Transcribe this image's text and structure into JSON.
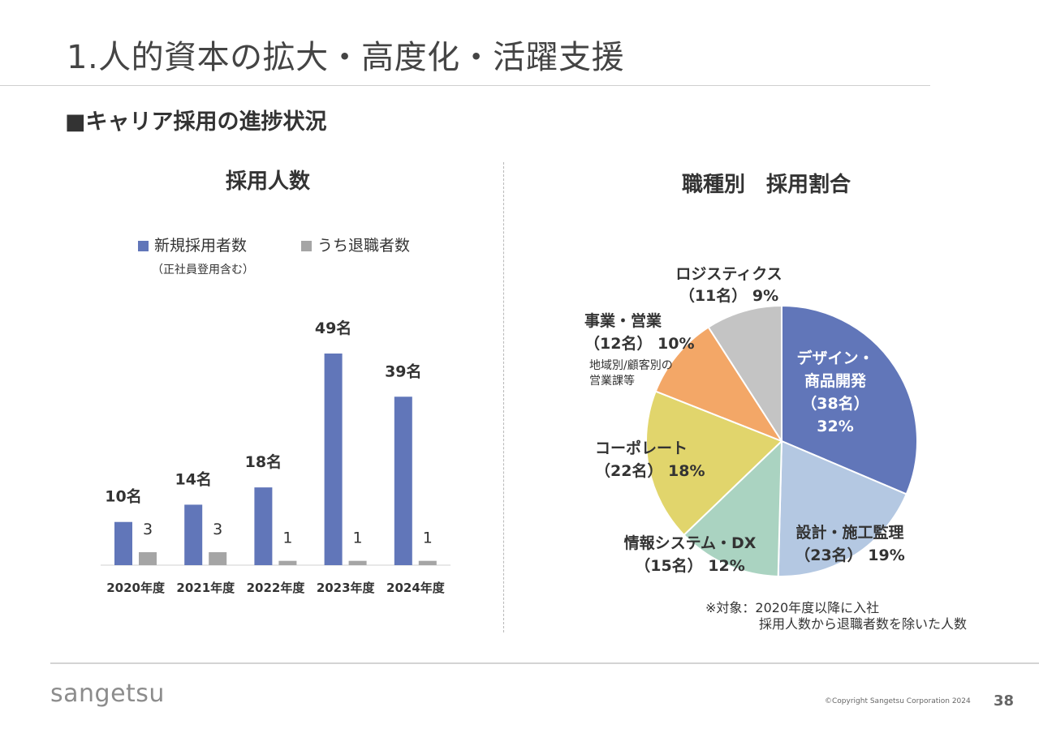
{
  "page": {
    "title": "1.人的資本の拡大・高度化・活躍支援",
    "section_heading": "■キャリア採用の進捗状況",
    "footnote_line1": "※対象：2020年度以降に入社",
    "footnote_line2": "採用人数から退職者数を除いた人数",
    "logo": "sangetsu",
    "copyright": "©Copyright Sangetsu Corporation 2024",
    "page_number": "38"
  },
  "chart_data": [
    {
      "type": "bar",
      "title": "採用人数",
      "categories": [
        "2020年度",
        "2021年度",
        "2022年度",
        "2023年度",
        "2024年度"
      ],
      "series": [
        {
          "name": "新規採用者数",
          "note": "（正社員登用含む）",
          "color": "#6176b9",
          "values": [
            10,
            14,
            18,
            49,
            39
          ],
          "labels": [
            "10名",
            "14名",
            "18名",
            "49名",
            "39名"
          ]
        },
        {
          "name": "うち退職者数",
          "color": "#a5a5a5",
          "values": [
            3,
            3,
            1,
            1,
            1
          ],
          "labels": [
            "3",
            "3",
            "1",
            "1",
            "1"
          ]
        }
      ],
      "ylim": [
        0,
        55
      ]
    },
    {
      "type": "pie",
      "title": "職種別　採用割合",
      "slices": [
        {
          "lines": [
            "デザイン・",
            "商品開発",
            "（38名）",
            "32%"
          ],
          "count": 38,
          "percent": 32,
          "color": "#6176b9",
          "label_color": "#ffffff"
        },
        {
          "lines": [
            "設計・施工監理",
            "（23名） 19%"
          ],
          "count": 23,
          "percent": 19,
          "color": "#b4c8e2",
          "label_color": "#333333"
        },
        {
          "lines": [
            "情報システム・DX",
            "（15名） 12%"
          ],
          "count": 15,
          "percent": 12,
          "color": "#aad3c1",
          "label_color": "#333333"
        },
        {
          "lines": [
            "コーポレート",
            "（22名） 18%"
          ],
          "count": 22,
          "percent": 18,
          "color": "#e1d56c",
          "label_color": "#333333"
        },
        {
          "lines": [
            "事業・営業",
            "（12名） 10%"
          ],
          "sublines": [
            "地域別/顧客別の",
            "営業課等"
          ],
          "count": 12,
          "percent": 10,
          "color": "#f3a767",
          "label_color": "#333333"
        },
        {
          "lines": [
            "ロジスティクス",
            "（11名） 9%"
          ],
          "count": 11,
          "percent": 9,
          "color": "#c4c4c4",
          "label_color": "#333333"
        }
      ]
    }
  ]
}
